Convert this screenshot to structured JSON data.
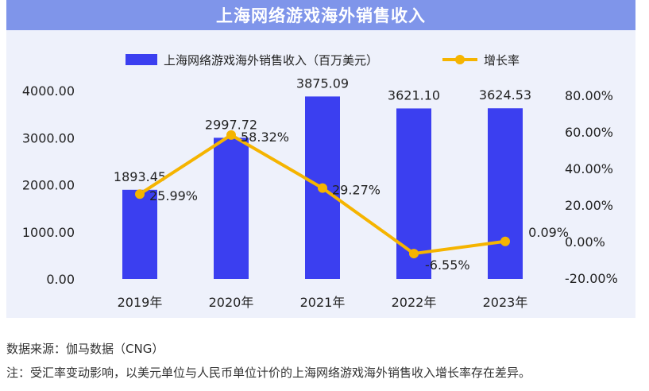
{
  "chart_data": {
    "type": "bar",
    "title": "上海网络游戏海外销售收入",
    "categories": [
      "2019年",
      "2020年",
      "2021年",
      "2022年",
      "2023年"
    ],
    "series": [
      {
        "name": "上海网络游戏海外销售收入（百万美元）",
        "type": "bar",
        "axis": "left",
        "values": [
          1893.45,
          2997.72,
          3875.09,
          3621.1,
          3624.53
        ],
        "labels": [
          "1893.45",
          "2997.72",
          "3875.09",
          "3621.10",
          "3624.53"
        ],
        "color": "#3b3ff0"
      },
      {
        "name": "增长率",
        "type": "line",
        "axis": "right",
        "values": [
          25.99,
          58.32,
          29.27,
          -6.55,
          0.09
        ],
        "labels": [
          "25.99%",
          "58.32%",
          "29.27%",
          "-6.55%",
          "0.09%"
        ],
        "color": "#f5b400"
      }
    ],
    "y_left": {
      "min": 0,
      "max": 4000,
      "ticks": [
        "0.00",
        "1000.00",
        "2000.00",
        "3000.00",
        "4000.00"
      ]
    },
    "y_right": {
      "min": -20,
      "max": 80,
      "ticks": [
        "-20.00%",
        "0.00%",
        "20.00%",
        "40.00%",
        "60.00%",
        "80.00%"
      ]
    },
    "legend": "top",
    "grid": false
  },
  "notes": {
    "source": "数据来源：伽马数据（CNG）",
    "footnote": "注：受汇率变动影响，以美元单位与人民币单位计价的上海网络游戏海外销售收入增长率存在差异。"
  }
}
